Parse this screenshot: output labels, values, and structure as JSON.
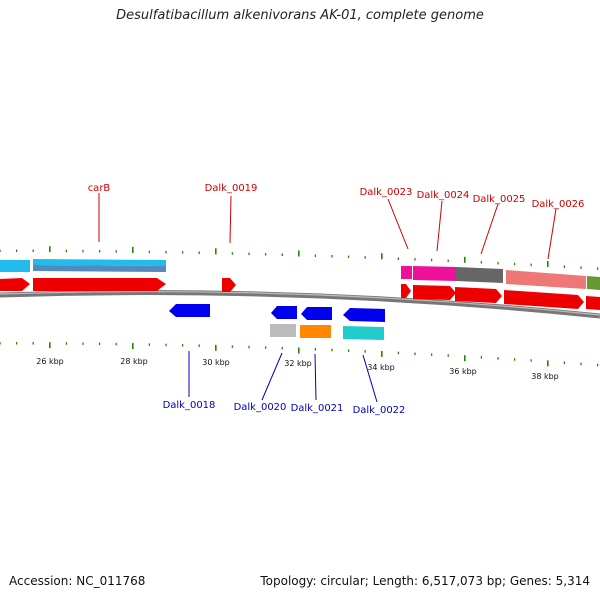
{
  "title": "Desulfatibacillum alkenivorans AK-01, complete genome",
  "footer": {
    "accession": "Accession: NC_011768",
    "summary": "Topology: circular; Length: 6,517,073 bp; Genes: 5,314"
  },
  "tick_labels": [
    "26 kbp",
    "28 kbp",
    "30 kbp",
    "32 kbp",
    "34 kbp",
    "36 kbp",
    "38 kbp"
  ],
  "colors": {
    "cds_red": "#ee0000",
    "blue": "#0000ee",
    "light_blue": "#22bbee",
    "steel_blue": "#5588bb",
    "magenta": "#ee1199",
    "dark_gray": "#666666",
    "salmon": "#ee7777",
    "olive": "#669933",
    "orange": "#ff8800",
    "cyan": "#22cccc",
    "silver": "#bbbbbb",
    "tick_green": "#228800",
    "backbone_gray": "#777777"
  },
  "top_labels": [
    "carB",
    "Dalk_0019",
    "Dalk_0023",
    "Dalk_0024",
    "Dalk_0025",
    "Dalk_0026"
  ],
  "bottom_labels": [
    "Dalk_0018",
    "Dalk_0020",
    "Dalk_0021",
    "Dalk_0022"
  ]
}
